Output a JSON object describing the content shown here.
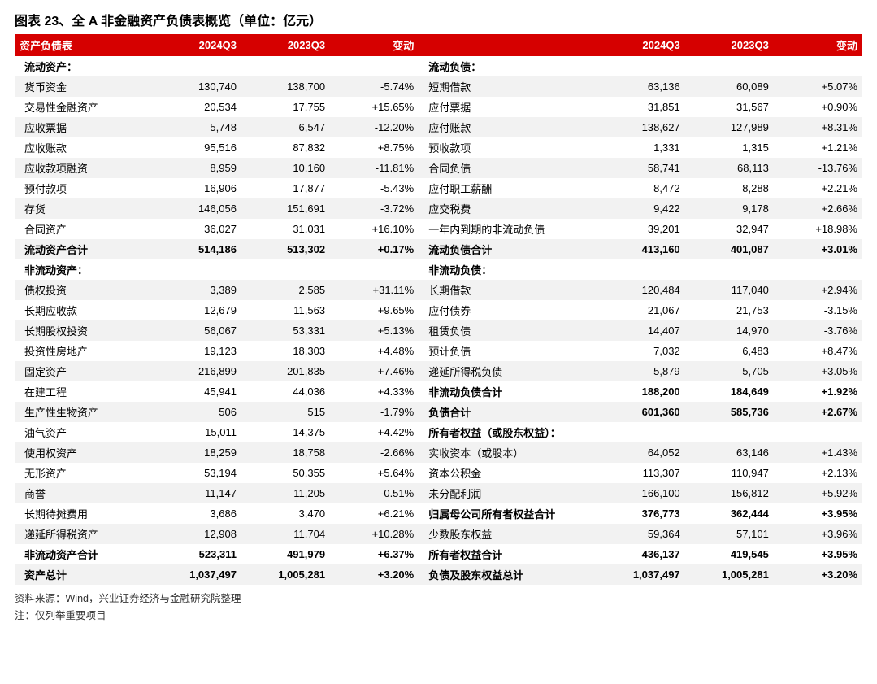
{
  "title": "图表 23、全 A 非金融资产负债表概览（单位：亿元）",
  "header": {
    "left_label": "资产负债表",
    "col_2024q3": "2024Q3",
    "col_2023q3": "2023Q3",
    "col_change": "变动"
  },
  "section_headings": {
    "current_assets": "流动资产：",
    "noncurrent_assets": "非流动资产：",
    "current_liab": "流动负债：",
    "noncurrent_liab": "非流动负债：",
    "equity": "所有者权益（或股东权益）："
  },
  "rows": [
    {
      "l": {
        "label": "货币资金",
        "a": "130,740",
        "b": "138,700",
        "c": "-5.74%"
      },
      "r": {
        "label": "短期借款",
        "a": "63,136",
        "b": "60,089",
        "c": "+5.07%"
      }
    },
    {
      "l": {
        "label": "交易性金融资产",
        "a": "20,534",
        "b": "17,755",
        "c": "+15.65%"
      },
      "r": {
        "label": "应付票据",
        "a": "31,851",
        "b": "31,567",
        "c": "+0.90%"
      }
    },
    {
      "l": {
        "label": "应收票据",
        "a": "5,748",
        "b": "6,547",
        "c": "-12.20%"
      },
      "r": {
        "label": "应付账款",
        "a": "138,627",
        "b": "127,989",
        "c": "+8.31%"
      }
    },
    {
      "l": {
        "label": "应收账款",
        "a": "95,516",
        "b": "87,832",
        "c": "+8.75%"
      },
      "r": {
        "label": "预收款项",
        "a": "1,331",
        "b": "1,315",
        "c": "+1.21%"
      }
    },
    {
      "l": {
        "label": "应收款项融资",
        "a": "8,959",
        "b": "10,160",
        "c": "-11.81%"
      },
      "r": {
        "label": "合同负债",
        "a": "58,741",
        "b": "68,113",
        "c": "-13.76%"
      }
    },
    {
      "l": {
        "label": "预付款项",
        "a": "16,906",
        "b": "17,877",
        "c": "-5.43%"
      },
      "r": {
        "label": "应付职工薪酬",
        "a": "8,472",
        "b": "8,288",
        "c": "+2.21%"
      }
    },
    {
      "l": {
        "label": "存货",
        "a": "146,056",
        "b": "151,691",
        "c": "-3.72%"
      },
      "r": {
        "label": "应交税费",
        "a": "9,422",
        "b": "9,178",
        "c": "+2.66%"
      }
    },
    {
      "l": {
        "label": "合同资产",
        "a": "36,027",
        "b": "31,031",
        "c": "+16.10%"
      },
      "r": {
        "label": "一年内到期的非流动负债",
        "a": "39,201",
        "b": "32,947",
        "c": "+18.98%"
      }
    },
    {
      "l": {
        "label": "流动资产合计",
        "a": "514,186",
        "b": "513,302",
        "c": "+0.17%",
        "bold": true
      },
      "r": {
        "label": "流动负债合计",
        "a": "413,160",
        "b": "401,087",
        "c": "+3.01%",
        "bold": true
      }
    },
    {
      "l": {
        "label": "债权投资",
        "a": "3,389",
        "b": "2,585",
        "c": "+31.11%"
      },
      "r": {
        "label": "长期借款",
        "a": "120,484",
        "b": "117,040",
        "c": "+2.94%"
      }
    },
    {
      "l": {
        "label": "长期应收款",
        "a": "12,679",
        "b": "11,563",
        "c": "+9.65%"
      },
      "r": {
        "label": "应付债券",
        "a": "21,067",
        "b": "21,753",
        "c": "-3.15%"
      }
    },
    {
      "l": {
        "label": "长期股权投资",
        "a": "56,067",
        "b": "53,331",
        "c": "+5.13%"
      },
      "r": {
        "label": "租赁负债",
        "a": "14,407",
        "b": "14,970",
        "c": "-3.76%"
      }
    },
    {
      "l": {
        "label": "投资性房地产",
        "a": "19,123",
        "b": "18,303",
        "c": "+4.48%"
      },
      "r": {
        "label": "预计负债",
        "a": "7,032",
        "b": "6,483",
        "c": "+8.47%"
      }
    },
    {
      "l": {
        "label": "固定资产",
        "a": "216,899",
        "b": "201,835",
        "c": "+7.46%"
      },
      "r": {
        "label": "递延所得税负债",
        "a": "5,879",
        "b": "5,705",
        "c": "+3.05%"
      }
    },
    {
      "l": {
        "label": "在建工程",
        "a": "45,941",
        "b": "44,036",
        "c": "+4.33%"
      },
      "r": {
        "label": "非流动负债合计",
        "a": "188,200",
        "b": "184,649",
        "c": "+1.92%",
        "bold": true
      }
    },
    {
      "l": {
        "label": "生产性生物资产",
        "a": "506",
        "b": "515",
        "c": "-1.79%"
      },
      "r": {
        "label": "负债合计",
        "a": "601,360",
        "b": "585,736",
        "c": "+2.67%",
        "bold": true
      }
    },
    {
      "l": {
        "label": "油气资产",
        "a": "15,011",
        "b": "14,375",
        "c": "+4.42%"
      },
      "r": {
        "heading": "equity"
      }
    },
    {
      "l": {
        "label": "使用权资产",
        "a": "18,259",
        "b": "18,758",
        "c": "-2.66%"
      },
      "r": {
        "label": "实收资本（或股本）",
        "a": "64,052",
        "b": "63,146",
        "c": "+1.43%"
      }
    },
    {
      "l": {
        "label": "无形资产",
        "a": "53,194",
        "b": "50,355",
        "c": "+5.64%"
      },
      "r": {
        "label": "资本公积金",
        "a": "113,307",
        "b": "110,947",
        "c": "+2.13%"
      }
    },
    {
      "l": {
        "label": "商誉",
        "a": "11,147",
        "b": "11,205",
        "c": "-0.51%"
      },
      "r": {
        "label": "未分配利润",
        "a": "166,100",
        "b": "156,812",
        "c": "+5.92%"
      }
    },
    {
      "l": {
        "label": "长期待摊费用",
        "a": "3,686",
        "b": "3,470",
        "c": "+6.21%"
      },
      "r": {
        "label": "归属母公司所有者权益合计",
        "a": "376,773",
        "b": "362,444",
        "c": "+3.95%",
        "bold": true
      }
    },
    {
      "l": {
        "label": "递延所得税资产",
        "a": "12,908",
        "b": "11,704",
        "c": "+10.28%"
      },
      "r": {
        "label": "少数股东权益",
        "a": "59,364",
        "b": "57,101",
        "c": "+3.96%"
      }
    },
    {
      "l": {
        "label": "非流动资产合计",
        "a": "523,311",
        "b": "491,979",
        "c": "+6.37%",
        "bold": true
      },
      "r": {
        "label": "所有者权益合计",
        "a": "436,137",
        "b": "419,545",
        "c": "+3.95%",
        "bold": true
      }
    },
    {
      "l": {
        "label": "资产总计",
        "a": "1,037,497",
        "b": "1,005,281",
        "c": "+3.20%",
        "bold": true
      },
      "r": {
        "label": "负债及股东权益总计",
        "a": "1,037,497",
        "b": "1,005,281",
        "c": "+3.20%",
        "bold": true
      }
    }
  ],
  "footer": {
    "source": "资料来源：Wind，兴业证券经济与金融研究院整理",
    "note": "注：仅列举重要项目"
  },
  "style": {
    "header_bg": "#d60000",
    "stripe_bg": "#f2f2f2",
    "font_family": "Microsoft YaHei / SimSun",
    "title_fontsize_pt": 16,
    "body_fontsize_pt": 13
  }
}
